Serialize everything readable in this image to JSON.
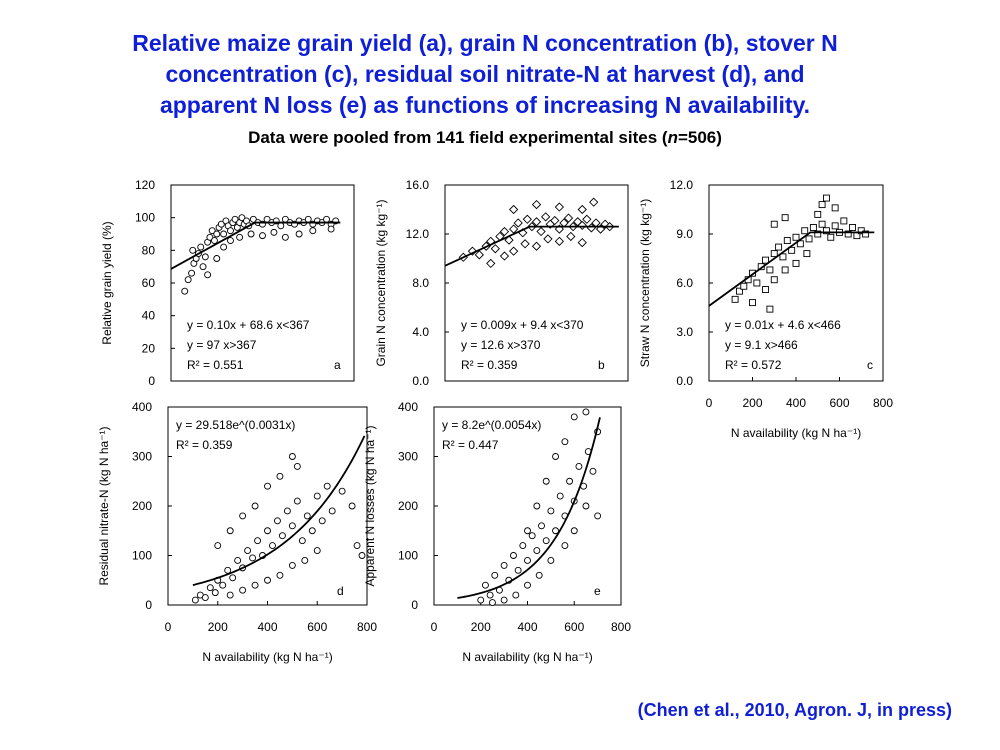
{
  "title_lines": [
    "Relative maize grain yield (a), grain N concentration (b), stover N",
    "concentration (c), residual soil nitrate-N at harvest (d), and",
    "apparent N loss (e) as functions of increasing N availability."
  ],
  "subtitle": {
    "before": "Data were pooled from 141 field experimental sites (",
    "italic": "n",
    "after": "=506)"
  },
  "citation": "(Chen et al., 2010, Agron. J, in press)",
  "chart_data": [
    {
      "panel": "a",
      "type": "scatter",
      "marker": "circle",
      "ylabel": "Relative grain yield (%)",
      "xlabel": "",
      "xlim": [
        0,
        800
      ],
      "ylim": [
        0,
        120
      ],
      "yticks": [
        "0",
        "20",
        "40",
        "60",
        "80",
        "100",
        "120"
      ],
      "equation_lines": [
        "y = 0.10x + 68.6  x<367",
        "y = 97               x>367",
        "R² = 0.551"
      ],
      "fit": {
        "kind": "linear-plateau",
        "slope": 0.1,
        "intercept": 68.6,
        "join": 367,
        "plateau": 97,
        "xmax": 740
      },
      "points": [
        [
          60,
          55
        ],
        [
          75,
          62
        ],
        [
          90,
          66
        ],
        [
          100,
          72
        ],
        [
          110,
          75
        ],
        [
          120,
          78
        ],
        [
          95,
          80
        ],
        [
          130,
          82
        ],
        [
          140,
          70
        ],
        [
          150,
          76
        ],
        [
          160,
          85
        ],
        [
          170,
          88
        ],
        [
          180,
          92
        ],
        [
          190,
          86
        ],
        [
          200,
          90
        ],
        [
          210,
          94
        ],
        [
          220,
          96
        ],
        [
          230,
          90
        ],
        [
          240,
          98
        ],
        [
          250,
          95
        ],
        [
          260,
          92
        ],
        [
          270,
          97
        ],
        [
          280,
          99
        ],
        [
          290,
          94
        ],
        [
          300,
          97
        ],
        [
          310,
          100
        ],
        [
          320,
          96
        ],
        [
          330,
          98
        ],
        [
          340,
          95
        ],
        [
          360,
          99
        ],
        [
          380,
          97
        ],
        [
          400,
          96
        ],
        [
          420,
          99
        ],
        [
          440,
          97
        ],
        [
          460,
          98
        ],
        [
          480,
          95
        ],
        [
          500,
          99
        ],
        [
          520,
          97
        ],
        [
          540,
          96
        ],
        [
          560,
          98
        ],
        [
          580,
          97
        ],
        [
          600,
          99
        ],
        [
          620,
          96
        ],
        [
          640,
          98
        ],
        [
          660,
          97
        ],
        [
          680,
          99
        ],
        [
          700,
          96
        ],
        [
          720,
          98
        ],
        [
          160,
          65
        ],
        [
          200,
          75
        ],
        [
          230,
          82
        ],
        [
          260,
          86
        ],
        [
          300,
          88
        ],
        [
          350,
          90
        ],
        [
          400,
          89
        ],
        [
          450,
          91
        ],
        [
          500,
          88
        ],
        [
          560,
          90
        ],
        [
          620,
          92
        ],
        [
          700,
          93
        ]
      ]
    },
    {
      "panel": "b",
      "type": "scatter",
      "marker": "diamond",
      "ylabel": "Grain N concentration (kg kg⁻¹)",
      "xlabel": "",
      "xlim": [
        0,
        800
      ],
      "ylim": [
        0,
        16
      ],
      "yticks": [
        "0.0",
        "4.0",
        "8.0",
        "12.0",
        "16.0"
      ],
      "equation_lines": [
        "y = 0.009x + 9.4  x<370",
        "y = 12.6              x>370",
        "R² = 0.359"
      ],
      "fit": {
        "kind": "linear-plateau",
        "slope": 0.009,
        "intercept": 9.4,
        "join": 370,
        "plateau": 12.6,
        "xmax": 760
      },
      "points": [
        [
          80,
          10.1
        ],
        [
          120,
          10.6
        ],
        [
          150,
          10.3
        ],
        [
          180,
          11.0
        ],
        [
          200,
          11.4
        ],
        [
          220,
          10.8
        ],
        [
          240,
          11.8
        ],
        [
          260,
          12.2
        ],
        [
          280,
          11.5
        ],
        [
          300,
          12.4
        ],
        [
          320,
          12.9
        ],
        [
          340,
          12.1
        ],
        [
          360,
          13.2
        ],
        [
          380,
          12.6
        ],
        [
          400,
          13.0
        ],
        [
          420,
          12.2
        ],
        [
          440,
          13.4
        ],
        [
          460,
          12.8
        ],
        [
          480,
          13.1
        ],
        [
          500,
          12.4
        ],
        [
          520,
          12.9
        ],
        [
          540,
          13.3
        ],
        [
          560,
          12.6
        ],
        [
          580,
          13.0
        ],
        [
          600,
          12.7
        ],
        [
          620,
          13.2
        ],
        [
          640,
          12.5
        ],
        [
          660,
          12.9
        ],
        [
          680,
          12.4
        ],
        [
          700,
          12.8
        ],
        [
          720,
          12.6
        ],
        [
          200,
          9.6
        ],
        [
          260,
          10.2
        ],
        [
          300,
          10.6
        ],
        [
          350,
          11.2
        ],
        [
          400,
          11.0
        ],
        [
          450,
          11.6
        ],
        [
          500,
          11.4
        ],
        [
          550,
          11.8
        ],
        [
          600,
          11.3
        ],
        [
          300,
          14.0
        ],
        [
          400,
          14.4
        ],
        [
          500,
          14.2
        ],
        [
          600,
          14.0
        ],
        [
          650,
          14.6
        ]
      ]
    },
    {
      "panel": "c",
      "type": "scatter",
      "marker": "square",
      "ylabel": "Straw N concentration (kg kg⁻¹)",
      "xlabel": "N availability (kg N ha⁻¹)",
      "xlim": [
        0,
        800
      ],
      "ylim": [
        0,
        12
      ],
      "xticks": [
        "0",
        "200",
        "400",
        "600",
        "800"
      ],
      "yticks": [
        "0.0",
        "3.0",
        "6.0",
        "9.0",
        "12.0"
      ],
      "equation_lines": [
        "y = 0.01x + 4.6  x<466",
        "y = 9.1              x>466",
        "R² = 0.572"
      ],
      "fit": {
        "kind": "linear-plateau",
        "slope": 0.01,
        "intercept": 4.6,
        "join": 466,
        "plateau": 9.1,
        "xmax": 760
      },
      "points": [
        [
          120,
          5.0
        ],
        [
          140,
          5.5
        ],
        [
          160,
          5.8
        ],
        [
          180,
          6.2
        ],
        [
          200,
          6.6
        ],
        [
          220,
          6.0
        ],
        [
          240,
          7.0
        ],
        [
          260,
          7.4
        ],
        [
          280,
          6.8
        ],
        [
          300,
          7.8
        ],
        [
          320,
          8.2
        ],
        [
          340,
          7.6
        ],
        [
          360,
          8.6
        ],
        [
          380,
          8.0
        ],
        [
          400,
          8.8
        ],
        [
          420,
          8.4
        ],
        [
          440,
          9.2
        ],
        [
          460,
          8.7
        ],
        [
          480,
          9.4
        ],
        [
          500,
          9.0
        ],
        [
          520,
          9.6
        ],
        [
          540,
          9.2
        ],
        [
          560,
          8.8
        ],
        [
          580,
          9.5
        ],
        [
          600,
          9.1
        ],
        [
          620,
          9.8
        ],
        [
          640,
          9.0
        ],
        [
          660,
          9.4
        ],
        [
          680,
          8.9
        ],
        [
          700,
          9.2
        ],
        [
          720,
          9.0
        ],
        [
          200,
          4.8
        ],
        [
          260,
          5.6
        ],
        [
          300,
          6.2
        ],
        [
          350,
          6.8
        ],
        [
          400,
          7.2
        ],
        [
          450,
          7.8
        ],
        [
          500,
          10.2
        ],
        [
          520,
          10.8
        ],
        [
          540,
          11.2
        ],
        [
          580,
          10.6
        ],
        [
          300,
          9.6
        ],
        [
          350,
          10.0
        ],
        [
          280,
          4.4
        ]
      ]
    },
    {
      "panel": "d",
      "type": "scatter",
      "marker": "circle",
      "ylabel": "Residual nitrate-N (kg N ha⁻¹)",
      "xlabel": "N availability (kg N ha⁻¹)",
      "xlim": [
        0,
        800
      ],
      "ylim": [
        0,
        400
      ],
      "xticks": [
        "0",
        "200",
        "400",
        "600",
        "800"
      ],
      "yticks": [
        "0",
        "100",
        "200",
        "300",
        "400"
      ],
      "equation_lines": [
        "y = 29.518e^(0.0031x)",
        "R² = 0.359"
      ],
      "fit": {
        "kind": "exponential",
        "a": 29.518,
        "b": 0.0031,
        "xmin": 100,
        "xmax": 790
      },
      "points": [
        [
          110,
          10
        ],
        [
          130,
          20
        ],
        [
          150,
          15
        ],
        [
          170,
          35
        ],
        [
          190,
          25
        ],
        [
          200,
          50
        ],
        [
          220,
          40
        ],
        [
          240,
          70
        ],
        [
          260,
          55
        ],
        [
          280,
          90
        ],
        [
          300,
          75
        ],
        [
          320,
          110
        ],
        [
          340,
          95
        ],
        [
          360,
          130
        ],
        [
          380,
          100
        ],
        [
          400,
          150
        ],
        [
          420,
          120
        ],
        [
          440,
          170
        ],
        [
          460,
          140
        ],
        [
          480,
          190
        ],
        [
          500,
          160
        ],
        [
          520,
          210
        ],
        [
          540,
          130
        ],
        [
          560,
          180
        ],
        [
          580,
          150
        ],
        [
          600,
          220
        ],
        [
          620,
          170
        ],
        [
          640,
          240
        ],
        [
          660,
          190
        ],
        [
          700,
          230
        ],
        [
          740,
          200
        ],
        [
          760,
          120
        ],
        [
          780,
          100
        ],
        [
          200,
          120
        ],
        [
          250,
          150
        ],
        [
          300,
          180
        ],
        [
          350,
          200
        ],
        [
          400,
          240
        ],
        [
          450,
          260
        ],
        [
          500,
          300
        ],
        [
          520,
          280
        ],
        [
          250,
          20
        ],
        [
          300,
          30
        ],
        [
          350,
          40
        ],
        [
          400,
          50
        ],
        [
          450,
          60
        ],
        [
          500,
          80
        ],
        [
          550,
          90
        ],
        [
          600,
          110
        ]
      ]
    },
    {
      "panel": "e",
      "type": "scatter",
      "marker": "circle",
      "ylabel": "Apparent N losses (kg N ha⁻¹)",
      "xlabel": "N availability (kg N ha⁻¹)",
      "xlim": [
        0,
        800
      ],
      "ylim": [
        0,
        400
      ],
      "xticks": [
        "0",
        "200",
        "400",
        "600",
        "800"
      ],
      "yticks": [
        "0",
        "100",
        "200",
        "300",
        "400"
      ],
      "equation_lines": [
        "y = 8.2e^(0.0054x)",
        "R² = 0.447"
      ],
      "fit": {
        "kind": "exponential",
        "a": 8.2,
        "b": 0.0054,
        "xmin": 100,
        "xmax": 710
      },
      "points": [
        [
          200,
          10
        ],
        [
          220,
          40
        ],
        [
          240,
          20
        ],
        [
          260,
          60
        ],
        [
          280,
          30
        ],
        [
          300,
          80
        ],
        [
          320,
          50
        ],
        [
          340,
          100
        ],
        [
          360,
          70
        ],
        [
          380,
          120
        ],
        [
          400,
          90
        ],
        [
          420,
          140
        ],
        [
          440,
          110
        ],
        [
          460,
          160
        ],
        [
          480,
          130
        ],
        [
          500,
          190
        ],
        [
          520,
          150
        ],
        [
          540,
          220
        ],
        [
          560,
          180
        ],
        [
          580,
          250
        ],
        [
          600,
          210
        ],
        [
          620,
          280
        ],
        [
          640,
          240
        ],
        [
          660,
          310
        ],
        [
          680,
          270
        ],
        [
          700,
          350
        ],
        [
          600,
          380
        ],
        [
          650,
          390
        ],
        [
          560,
          120
        ],
        [
          500,
          90
        ],
        [
          450,
          60
        ],
        [
          400,
          40
        ],
        [
          350,
          20
        ],
        [
          300,
          10
        ],
        [
          250,
          5
        ],
        [
          600,
          150
        ],
        [
          650,
          200
        ],
        [
          700,
          180
        ],
        [
          480,
          250
        ],
        [
          520,
          300
        ],
        [
          560,
          330
        ],
        [
          440,
          200
        ],
        [
          400,
          150
        ]
      ]
    }
  ]
}
